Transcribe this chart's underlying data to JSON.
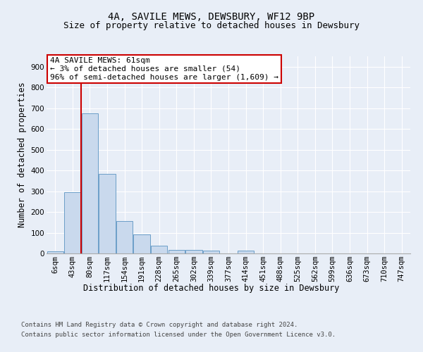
{
  "title": "4A, SAVILE MEWS, DEWSBURY, WF12 9BP",
  "subtitle": "Size of property relative to detached houses in Dewsbury",
  "xlabel": "Distribution of detached houses by size in Dewsbury",
  "ylabel": "Number of detached properties",
  "bar_labels": [
    "6sqm",
    "43sqm",
    "80sqm",
    "117sqm",
    "154sqm",
    "191sqm",
    "228sqm",
    "265sqm",
    "302sqm",
    "339sqm",
    "377sqm",
    "414sqm",
    "451sqm",
    "488sqm",
    "525sqm",
    "562sqm",
    "599sqm",
    "636sqm",
    "673sqm",
    "710sqm",
    "747sqm"
  ],
  "bar_values": [
    10,
    295,
    675,
    385,
    155,
    90,
    38,
    16,
    16,
    12,
    0,
    12,
    0,
    0,
    0,
    0,
    0,
    0,
    0,
    0,
    0
  ],
  "bar_color": "#c9d9ed",
  "bar_edge_color": "#6b9ec8",
  "property_line_x": 1.5,
  "annotation_line1": "4A SAVILE MEWS: 61sqm",
  "annotation_line2": "← 3% of detached houses are smaller (54)",
  "annotation_line3": "96% of semi-detached houses are larger (1,609) →",
  "annotation_box_color": "#ffffff",
  "annotation_box_edge": "#cc0000",
  "vline_color": "#cc0000",
  "ylim": [
    0,
    950
  ],
  "yticks": [
    0,
    100,
    200,
    300,
    400,
    500,
    600,
    700,
    800,
    900
  ],
  "footer1": "Contains HM Land Registry data © Crown copyright and database right 2024.",
  "footer2": "Contains public sector information licensed under the Open Government Licence v3.0.",
  "bg_color": "#e8eef7",
  "plot_bg_color": "#e8eef7",
  "grid_color": "#ffffff",
  "title_fontsize": 10,
  "subtitle_fontsize": 9,
  "axis_label_fontsize": 8.5,
  "tick_fontsize": 7.5,
  "footer_fontsize": 6.5,
  "annotation_fontsize": 8
}
